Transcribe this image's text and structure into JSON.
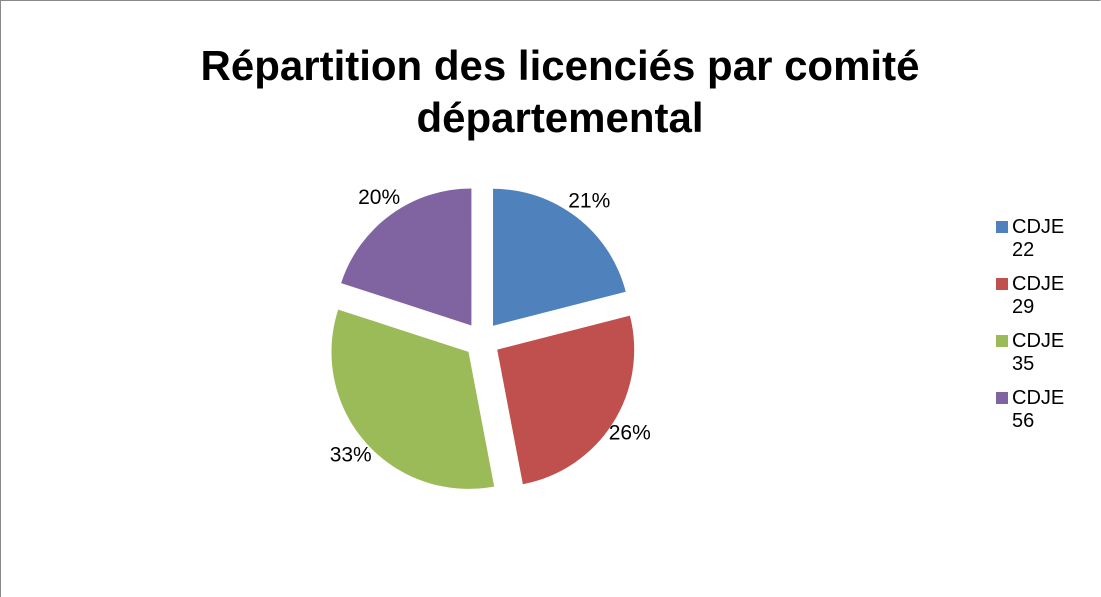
{
  "chart_data": {
    "type": "pie",
    "title": "Répartition des licenciés par comité départemental",
    "categories": [
      "CDJE 22",
      "CDJE 29",
      "CDJE 35",
      "CDJE 56"
    ],
    "values": [
      21,
      26,
      33,
      20
    ],
    "value_labels": [
      "21%",
      "26%",
      "33%",
      "20%"
    ],
    "colors": [
      "#4f81bd",
      "#c0504d",
      "#9bbb59",
      "#8064a2"
    ],
    "legend": "right"
  }
}
